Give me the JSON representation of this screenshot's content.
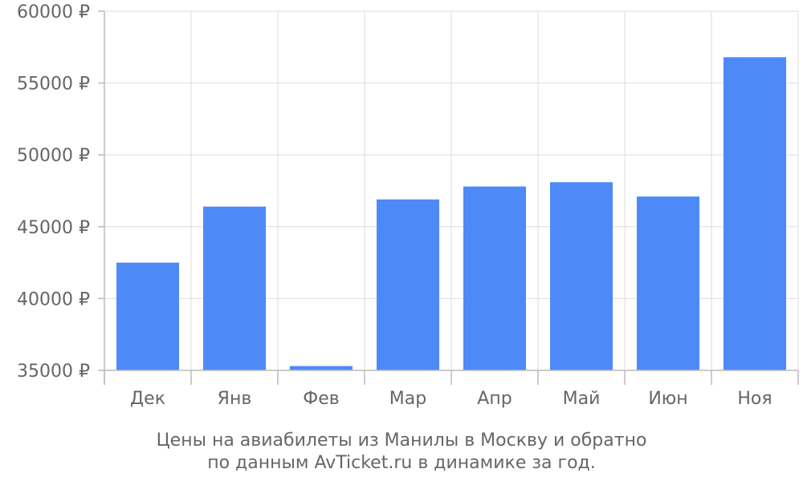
{
  "chart_data": {
    "type": "bar",
    "categories": [
      "Дек",
      "Янв",
      "Фев",
      "Мар",
      "Апр",
      "Май",
      "Июн",
      "Ноя"
    ],
    "values": [
      42500,
      46400,
      35300,
      46900,
      47800,
      48100,
      47100,
      56800
    ],
    "ylim": [
      35000,
      60000
    ],
    "y_ticks": [
      35000,
      40000,
      45000,
      50000,
      55000,
      60000
    ],
    "y_tick_suffix": " ₽",
    "caption_lines": [
      "Цены на авиабилеты из Манилы в Москву и обратно",
      "по данным AvTicket.ru в динамике за год."
    ],
    "grid": true,
    "bar_color": "#4d8af8",
    "text_color": "#666666",
    "grid_color": "#dddddd"
  }
}
